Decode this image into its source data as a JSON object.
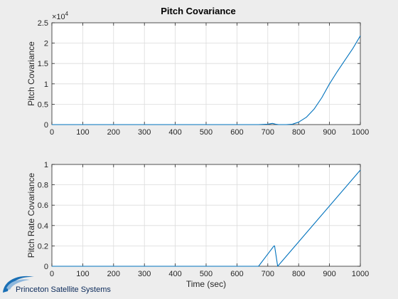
{
  "title": "Pitch Covariance",
  "logo": {
    "text": "Princeton Satellite Systems"
  },
  "colors": {
    "line": "#0072bd",
    "axes": "#262626",
    "grid": "#dcdcdc",
    "background": "#ededed",
    "plot_bg": "#ffffff"
  },
  "chart_data": [
    {
      "type": "line",
      "title": "Pitch Covariance",
      "xlabel": "",
      "ylabel": "Pitch Covariance",
      "exponent_label": "×10",
      "exponent_power": "4",
      "xlim": [
        0,
        1000
      ],
      "ylim": [
        0,
        2.5
      ],
      "xticks": [
        "0",
        "100",
        "200",
        "300",
        "400",
        "500",
        "600",
        "700",
        "800",
        "900",
        "1000"
      ],
      "yticks": [
        "0",
        "0.5",
        "1",
        "1.5",
        "2",
        "2.5"
      ],
      "grid": true,
      "series": [
        {
          "x": [
            0,
            670,
            700,
            715,
            725,
            735,
            760,
            780,
            800,
            825,
            850,
            875,
            900,
            925,
            950,
            975,
            1000
          ],
          "y": [
            0,
            0,
            0.01,
            0.03,
            0.01,
            0,
            0,
            0.01,
            0.06,
            0.18,
            0.38,
            0.66,
            1.0,
            1.3,
            1.58,
            1.86,
            2.18
          ]
        }
      ]
    },
    {
      "type": "line",
      "title": "",
      "xlabel": "Time (sec)",
      "ylabel": "Pitch Rate Covariance",
      "xlim": [
        0,
        1000
      ],
      "ylim": [
        0,
        1
      ],
      "xticks": [
        "0",
        "100",
        "200",
        "300",
        "400",
        "500",
        "600",
        "700",
        "800",
        "900",
        "1000"
      ],
      "yticks": [
        "0",
        "0.2",
        "0.4",
        "0.6",
        "0.8",
        "1"
      ],
      "grid": true,
      "series": [
        {
          "x": [
            0,
            670,
            720,
            722,
            732,
            1000
          ],
          "y": [
            0,
            0,
            0.2,
            0.2,
            0,
            0.945
          ]
        }
      ]
    }
  ]
}
